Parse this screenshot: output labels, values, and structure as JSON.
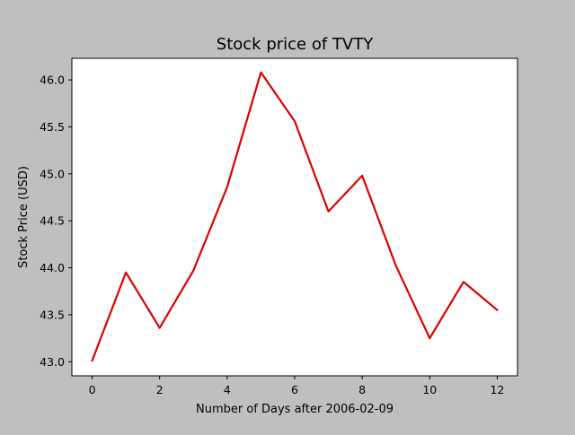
{
  "chart_data": {
    "type": "line",
    "title": "Stock price of TVTY",
    "xlabel": "Number of Days after 2006-02-09",
    "ylabel": "Stock Price (USD)",
    "xlim": [
      -0.6,
      12.6
    ],
    "ylim": [
      42.85,
      46.23
    ],
    "xticks": [
      0,
      2,
      4,
      6,
      8,
      10,
      12
    ],
    "yticks": [
      43.0,
      43.5,
      44.0,
      44.5,
      45.0,
      45.5,
      46.0
    ],
    "ytick_labels": [
      "43.0",
      "43.5",
      "44.0",
      "44.5",
      "45.0",
      "45.5",
      "46.0"
    ],
    "grid": false,
    "series": [
      {
        "color": "#dd0000",
        "x": [
          0,
          1,
          2,
          3,
          4,
          5,
          6,
          7,
          8,
          9,
          10,
          11,
          12
        ],
        "values": [
          43.01,
          43.95,
          43.36,
          43.97,
          44.86,
          46.08,
          45.56,
          44.6,
          44.98,
          44.02,
          43.25,
          43.85,
          43.55
        ]
      }
    ],
    "colors": {
      "figure_background": "#bfbfbf",
      "plot_background": "#ffffff",
      "line": "#dd0000"
    }
  }
}
